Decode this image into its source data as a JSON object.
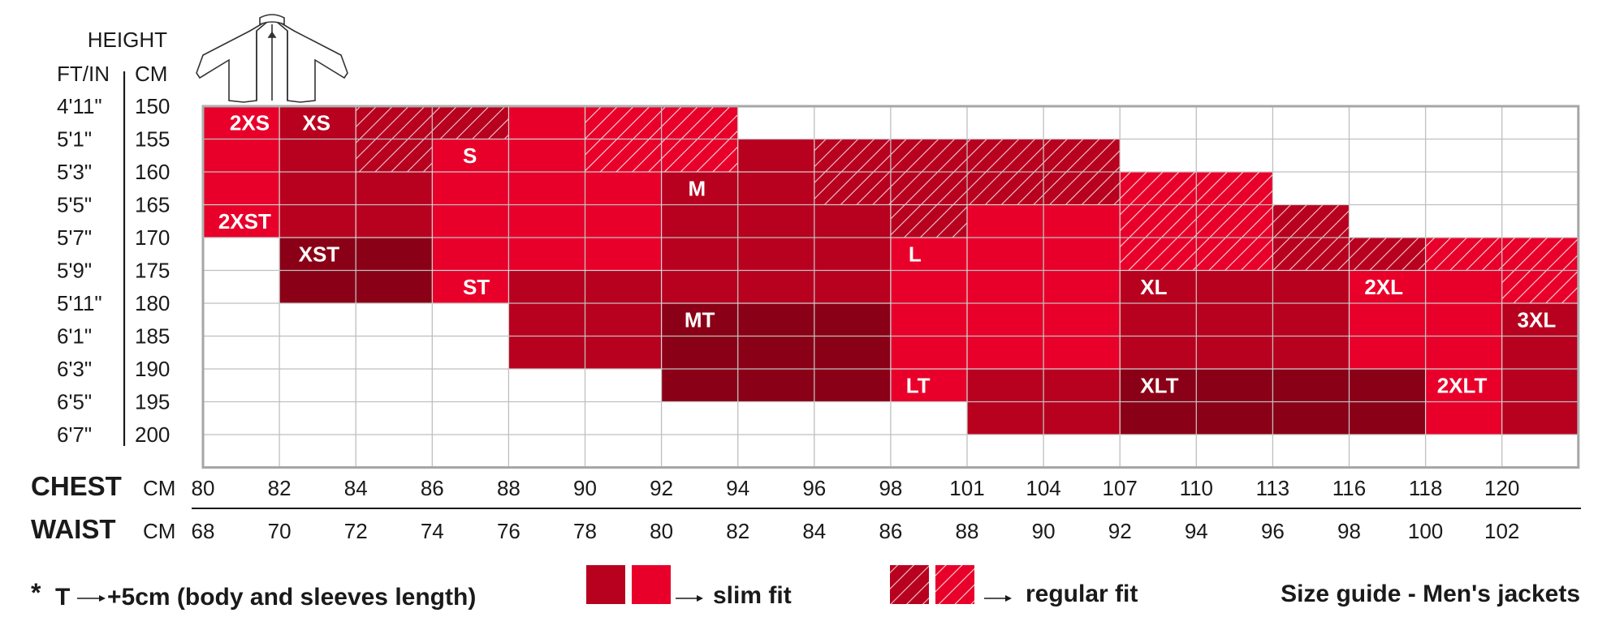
{
  "chart_data": {
    "type": "heatmap",
    "title": "Size guide - Men's jackets",
    "height_header": "HEIGHT",
    "ft_header": "FT/IN",
    "cm_header": "CM",
    "height_ft": [
      "4'11\"",
      "5'1\"",
      "5'3\"",
      "5'5\"",
      "5'7\"",
      "5'9\"",
      "5'11\"",
      "6'1\"",
      "6'3\"",
      "6'5\"",
      "6'7\""
    ],
    "height_cm": [
      "150",
      "155",
      "160",
      "165",
      "170",
      "175",
      "180",
      "185",
      "190",
      "195",
      "200"
    ],
    "chest_label": "CHEST",
    "waist_label": "WAIST",
    "chest_unit": "CM",
    "waist_unit": "CM",
    "chest_cm": [
      "80",
      "82",
      "84",
      "86",
      "88",
      "90",
      "92",
      "94",
      "96",
      "98",
      "101",
      "104",
      "107",
      "110",
      "113",
      "116",
      "118",
      "120"
    ],
    "waist_cm": [
      "68",
      "70",
      "72",
      "74",
      "76",
      "78",
      "80",
      "82",
      "84",
      "86",
      "88",
      "90",
      "92",
      "94",
      "96",
      "98",
      "100",
      "102"
    ],
    "sizes": [
      {
        "label": "2XS",
        "fit": "slim",
        "chest": [
          80,
          82
        ],
        "height": [
          150,
          165
        ],
        "shade": "light"
      },
      {
        "label": "2XST",
        "fit": "slim",
        "chest": [
          80,
          82
        ],
        "height": [
          165,
          170
        ],
        "shade": "light"
      },
      {
        "label": "XS",
        "fit": "slim",
        "chest": [
          82,
          84
        ],
        "height": [
          150,
          170
        ],
        "shade": "dark"
      },
      {
        "label": "XS",
        "fit": "slim",
        "chest": [
          84,
          86
        ],
        "height": [
          160,
          170
        ],
        "shade": "dark"
      },
      {
        "label": "XS",
        "fit": "regular",
        "chest": [
          84,
          88
        ],
        "height": [
          150,
          160
        ],
        "shade": "dark"
      },
      {
        "label": "XST",
        "fit": "slim",
        "chest": [
          82,
          86
        ],
        "height": [
          170,
          180
        ],
        "shade": "darker"
      },
      {
        "label": "S",
        "fit": "slim",
        "chest": [
          86,
          92
        ],
        "height": [
          155,
          175
        ],
        "shade": "light"
      },
      {
        "label": "S",
        "fit": "slim",
        "chest": [
          88,
          90
        ],
        "height": [
          150,
          155
        ],
        "shade": "light"
      },
      {
        "label": "S",
        "fit": "regular",
        "chest": [
          90,
          94
        ],
        "height": [
          150,
          160
        ],
        "shade": "light"
      },
      {
        "label": "ST",
        "fit": "slim",
        "chest": [
          86,
          88
        ],
        "height": [
          175,
          180
        ],
        "shade": "light"
      },
      {
        "label": "ST",
        "fit": "slim",
        "chest": [
          88,
          92
        ],
        "height": [
          175,
          190
        ],
        "shade": "dark"
      },
      {
        "label": "M",
        "fit": "slim",
        "chest": [
          92,
          98
        ],
        "height": [
          160,
          180
        ],
        "shade": "dark"
      },
      {
        "label": "M",
        "fit": "slim",
        "chest": [
          94,
          96
        ],
        "height": [
          155,
          160
        ],
        "shade": "dark"
      },
      {
        "label": "M",
        "fit": "regular",
        "chest": [
          96,
          107
        ],
        "height": [
          155,
          165
        ],
        "shade": "dark"
      },
      {
        "label": "M",
        "fit": "regular",
        "chest": [
          98,
          101
        ],
        "height": [
          165,
          170
        ],
        "shade": "dark"
      },
      {
        "label": "MT",
        "fit": "slim",
        "chest": [
          92,
          98
        ],
        "height": [
          180,
          195
        ],
        "shade": "darker"
      },
      {
        "label": "L",
        "fit": "slim",
        "chest": [
          98,
          101
        ],
        "height": [
          170,
          190
        ],
        "shade": "light"
      },
      {
        "label": "L",
        "fit": "slim",
        "chest": [
          101,
          107
        ],
        "height": [
          165,
          190
        ],
        "shade": "light"
      },
      {
        "label": "LT",
        "fit": "slim",
        "chest": [
          98,
          101
        ],
        "height": [
          190,
          195
        ],
        "shade": "light"
      },
      {
        "label": "LT",
        "fit": "slim",
        "chest": [
          101,
          107
        ],
        "height": [
          190,
          200
        ],
        "shade": "dark"
      },
      {
        "label": "XL",
        "fit": "regular",
        "chest": [
          107,
          113
        ],
        "height": [
          160,
          175
        ],
        "shade": "light"
      },
      {
        "label": "XL",
        "fit": "regular",
        "chest": [
          113,
          116
        ],
        "height": [
          165,
          175
        ],
        "shade": "dark"
      },
      {
        "label": "XL",
        "fit": "slim",
        "chest": [
          107,
          116
        ],
        "height": [
          175,
          190
        ],
        "shade": "dark"
      },
      {
        "label": "XLT",
        "fit": "slim",
        "chest": [
          107,
          118
        ],
        "height": [
          190,
          200
        ],
        "shade": "darker"
      },
      {
        "label": "2XL",
        "fit": "regular",
        "chest": [
          116,
          118
        ],
        "height": [
          170,
          175
        ],
        "shade": "dark"
      },
      {
        "label": "2XL",
        "fit": "regular",
        "chest": [
          118,
          122
        ],
        "height": [
          170,
          180
        ],
        "shade": "light"
      },
      {
        "label": "2XL",
        "fit": "slim",
        "chest": [
          116,
          120
        ],
        "height": [
          175,
          190
        ],
        "shade": "light"
      },
      {
        "label": "2XLT",
        "fit": "slim",
        "chest": [
          118,
          120
        ],
        "height": [
          190,
          200
        ],
        "shade": "light"
      },
      {
        "label": "3XL",
        "fit": "slim",
        "chest": [
          120,
          122
        ],
        "height": [
          180,
          200
        ],
        "shade": "dark"
      }
    ],
    "size_labels": [
      {
        "text": "2XS",
        "chest": 80.7,
        "height": 152.5
      },
      {
        "text": "XS",
        "chest": 82.6,
        "height": 152.5
      },
      {
        "text": "S",
        "chest": 86.8,
        "height": 157.5
      },
      {
        "text": "2XST",
        "chest": 80.4,
        "height": 167.5
      },
      {
        "text": "M",
        "chest": 92.7,
        "height": 162.5
      },
      {
        "text": "XST",
        "chest": 82.5,
        "height": 172.5
      },
      {
        "text": "L",
        "chest": 98.7,
        "height": 172.5
      },
      {
        "text": "ST",
        "chest": 86.8,
        "height": 177.5
      },
      {
        "text": "XL",
        "chest": 107.8,
        "height": 177.5
      },
      {
        "text": "2XL",
        "chest": 116.4,
        "height": 177.5
      },
      {
        "text": "MT",
        "chest": 92.6,
        "height": 182.5
      },
      {
        "text": "3XL",
        "chest": 120.4,
        "height": 182.5
      },
      {
        "text": "LT",
        "chest": 98.6,
        "height": 192.5
      },
      {
        "text": "XLT",
        "chest": 107.8,
        "height": 192.5
      },
      {
        "text": "2XLT",
        "chest": 118.3,
        "height": 192.5
      }
    ],
    "legend": {
      "note_star": "*",
      "note_t": "T",
      "note_text": "+5cm (body and sleeves length)",
      "slim_label": "slim fit",
      "regular_label": "regular fit"
    },
    "colors": {
      "light": "#e8002a",
      "dark": "#b8001f",
      "darker": "#8a0016",
      "grid": "#bfbfbf",
      "border": "#a6a6a6",
      "region_border": "#ffffff"
    }
  }
}
